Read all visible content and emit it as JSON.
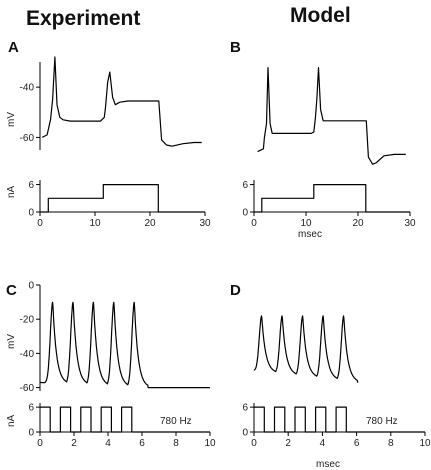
{
  "titles": {
    "left": "Experiment",
    "right": "Model"
  },
  "chart_data": [
    {
      "panel": "A",
      "type": "line",
      "title": "Experiment",
      "xlim": [
        0,
        30
      ],
      "ylim": [
        -65,
        -30
      ],
      "xticks": [
        0,
        10,
        20,
        30
      ],
      "yticks": [
        -60,
        -40
      ],
      "ylabel": "mV",
      "xlabel": "",
      "series": [
        {
          "x": [
            0.4,
            1.3,
            1.9,
            2.3,
            2.7,
            3.1,
            3.6,
            4.2,
            5.5,
            8,
            11,
            11.7,
            11.9,
            12.3,
            12.7,
            13.2,
            13.7,
            14.5,
            16,
            18,
            20,
            21.6,
            22.1,
            23,
            24,
            26,
            28,
            29.4
          ],
          "y": [
            -60,
            -59,
            -53,
            -45,
            -28,
            -47,
            -52,
            -53,
            -53.5,
            -53.5,
            -53.5,
            -52,
            -48,
            -38,
            -34,
            -44,
            -47,
            -46,
            -45.5,
            -45.5,
            -45.5,
            -45.5,
            -61,
            -63,
            -63.5,
            -62.5,
            -62,
            -62
          ]
        }
      ]
    },
    {
      "panel": "A-current",
      "type": "line",
      "xlim": [
        0,
        30
      ],
      "ylim": [
        0,
        7
      ],
      "xticks": [
        0,
        10,
        20,
        30
      ],
      "xtick_labels": [
        "0",
        "10",
        "20",
        "30"
      ],
      "yticks": [
        0,
        6
      ],
      "ylabel": "nA",
      "xlabel": "",
      "series": [
        {
          "x": [
            0,
            1.5,
            1.5,
            11.5,
            11.5,
            21.5,
            21.5,
            30
          ],
          "y": [
            0,
            0,
            3,
            3,
            6,
            6,
            0,
            0
          ]
        }
      ]
    },
    {
      "panel": "B",
      "type": "line",
      "title": "Model",
      "xlim": [
        0,
        30
      ],
      "ylim": [
        -65,
        -30
      ],
      "series": [
        {
          "x": [
            0.7,
            1.8,
            2.0,
            2.4,
            2.7,
            3.1,
            3.5,
            4.0,
            5,
            8,
            11,
            11.5,
            11.8,
            12.1,
            12.4,
            12.8,
            13.3,
            14,
            16,
            19,
            21.6,
            22,
            22.8,
            23.5,
            25,
            27,
            29.2
          ],
          "y": [
            -62,
            -61,
            -57,
            -52,
            -32,
            -52,
            -55.5,
            -55.5,
            -55.5,
            -55.5,
            -55.5,
            -55,
            -50,
            -43,
            -32,
            -47,
            -51,
            -51,
            -51,
            -51,
            -51,
            -64,
            -66.5,
            -66,
            -63.5,
            -63,
            -63
          ]
        }
      ]
    },
    {
      "panel": "B-current",
      "type": "line",
      "xlim": [
        0,
        30
      ],
      "ylim": [
        0,
        7
      ],
      "xticks": [
        0,
        10,
        20,
        30
      ],
      "xtick_labels": [
        "0",
        "10",
        "20",
        "30"
      ],
      "yticks": [
        0,
        6
      ],
      "xlabel": "msec",
      "series": [
        {
          "x": [
            0,
            1.5,
            1.5,
            11.5,
            11.5,
            21.5,
            21.5,
            30
          ],
          "y": [
            0,
            0,
            3,
            3,
            6,
            6,
            0,
            0
          ]
        }
      ]
    },
    {
      "panel": "C",
      "type": "line",
      "xlim": [
        0,
        10
      ],
      "ylim": [
        -62,
        0
      ],
      "yticks": [
        -60,
        -40,
        -20,
        0
      ],
      "ylabel": "mV",
      "spikes_t": [
        0.75,
        1.95,
        3.15,
        4.35,
        5.55
      ],
      "series": [
        {
          "name": "",
          "baseline_start": -57,
          "baseline_end": -60,
          "peak": -10
        }
      ]
    },
    {
      "panel": "C-current",
      "type": "line",
      "xlim": [
        0,
        10
      ],
      "ylim": [
        0,
        7
      ],
      "xticks": [
        0,
        2,
        4,
        6,
        8,
        10
      ],
      "xtick_labels": [
        "0",
        "2",
        "4",
        "6",
        "8",
        "10"
      ],
      "yticks": [
        0,
        6
      ],
      "ylabel": "nA",
      "annotation": "780 Hz",
      "series": [
        {
          "pulses_on": [
            [
              0,
              0.6
            ],
            [
              1.2,
              1.8
            ],
            [
              2.4,
              3.0
            ],
            [
              3.6,
              4.2
            ],
            [
              4.8,
              5.4
            ]
          ],
          "end": 6.0,
          "level": 6
        }
      ]
    },
    {
      "panel": "D",
      "type": "line",
      "xlim": [
        0,
        10
      ],
      "ylim": [
        -62,
        0
      ],
      "spikes_t": [
        0.45,
        1.65,
        2.85,
        4.05,
        5.25
      ],
      "series": [
        {
          "name": "",
          "baseline_start": -50,
          "baseline_end": -57,
          "peak": -18
        }
      ]
    },
    {
      "panel": "D-current",
      "type": "line",
      "xlim": [
        0,
        10
      ],
      "ylim": [
        0,
        7
      ],
      "xticks": [
        0,
        2,
        4,
        6,
        8,
        10
      ],
      "xtick_labels": [
        "0",
        "2",
        "4",
        "6",
        "8",
        "10"
      ],
      "yticks": [
        0,
        6
      ],
      "xlabel": "msec",
      "annotation": "780 Hz",
      "series": [
        {
          "pulses_on": [
            [
              0,
              0.6
            ],
            [
              1.2,
              1.8
            ],
            [
              2.4,
              3.0
            ],
            [
              3.6,
              4.2
            ],
            [
              4.8,
              5.4
            ]
          ],
          "end": 6.0,
          "level": 6
        }
      ]
    }
  ]
}
